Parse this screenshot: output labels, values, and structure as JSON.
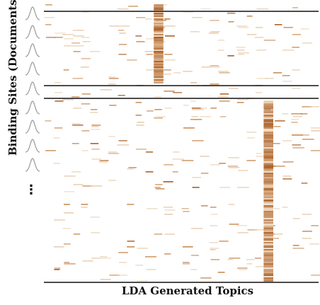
{
  "axis": {
    "ylabel": "Binding Sites (Documents)",
    "xlabel": "LDA Generated Topics"
  },
  "colors": {
    "stripe_dark": "#a85a1c",
    "stripe_mid": "#c98a52",
    "stripe_light": "#e8cdb0",
    "divider": "#111111",
    "bell_curve": "#9a9a9a"
  },
  "matrix": {
    "description_free": true,
    "topics": 30,
    "highlight_topics": [
      {
        "topic": 12,
        "group": 1,
        "strength": 0.95
      },
      {
        "topic": 24,
        "group": 3,
        "strength": 0.95
      }
    ],
    "group_boundaries": 3
  },
  "side_glyphs": {
    "bell_curves": 9,
    "ellipsis": "⋮"
  }
}
